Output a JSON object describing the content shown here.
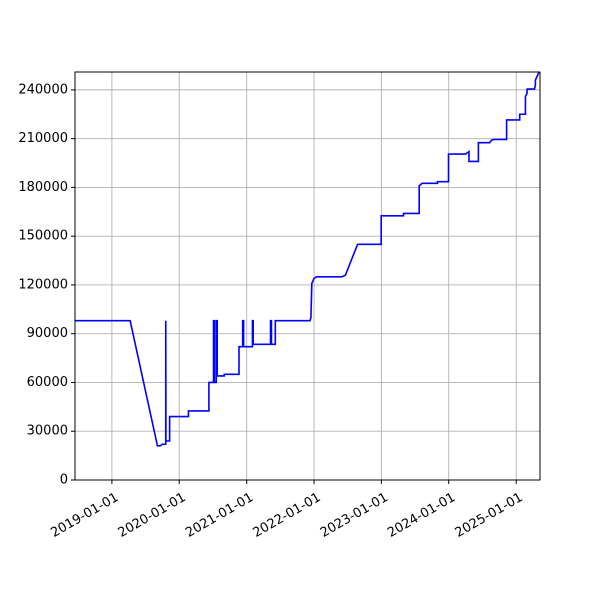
{
  "chart_data": {
    "type": "line",
    "title": "",
    "xlabel": "",
    "ylabel": "",
    "x_type": "date",
    "xlim": [
      "2018-06-15",
      "2025-05-10"
    ],
    "ylim": [
      0,
      251000
    ],
    "grid": true,
    "legend": "none",
    "x_ticks": [
      "2019-01-01",
      "2020-01-01",
      "2021-01-01",
      "2022-01-01",
      "2023-01-01",
      "2024-01-01",
      "2025-01-01"
    ],
    "y_ticks": [
      0,
      30000,
      60000,
      90000,
      120000,
      150000,
      180000,
      210000,
      240000
    ],
    "colors": {
      "line": "#0000ff",
      "grid": "#b0b0b0",
      "axis": "#000000"
    },
    "series": [
      {
        "name": "",
        "points": [
          [
            "2018-06-15",
            98000
          ],
          [
            "2019-04-10",
            98000
          ],
          [
            "2019-09-05",
            21000
          ],
          [
            "2019-09-20",
            21000
          ],
          [
            "2019-10-01",
            22000
          ],
          [
            "2019-10-20",
            22000
          ],
          [
            "2019-10-20",
            98000
          ],
          [
            "2019-10-21",
            24000
          ],
          [
            "2019-11-10",
            24000
          ],
          [
            "2019-11-10",
            39000
          ],
          [
            "2020-02-20",
            39000
          ],
          [
            "2020-02-20",
            42500
          ],
          [
            "2020-06-10",
            42500
          ],
          [
            "2020-06-10",
            60000
          ],
          [
            "2020-07-05",
            60000
          ],
          [
            "2020-07-05",
            98000
          ],
          [
            "2020-07-10",
            98000
          ],
          [
            "2020-07-10",
            60000
          ],
          [
            "2020-07-20",
            60000
          ],
          [
            "2020-07-20",
            98000
          ],
          [
            "2020-07-25",
            98000
          ],
          [
            "2020-07-25",
            64000
          ],
          [
            "2020-09-01",
            64000
          ],
          [
            "2020-09-01",
            65000
          ],
          [
            "2020-11-20",
            65000
          ],
          [
            "2020-11-20",
            82000
          ],
          [
            "2020-12-10",
            82000
          ],
          [
            "2020-12-10",
            98000
          ],
          [
            "2020-12-15",
            98000
          ],
          [
            "2020-12-15",
            82000
          ],
          [
            "2021-02-01",
            82000
          ],
          [
            "2021-02-01",
            98000
          ],
          [
            "2021-02-05",
            98000
          ],
          [
            "2021-02-05",
            83500
          ],
          [
            "2021-05-10",
            83500
          ],
          [
            "2021-05-10",
            98000
          ],
          [
            "2021-05-15",
            98000
          ],
          [
            "2021-05-15",
            83500
          ],
          [
            "2021-06-05",
            83500
          ],
          [
            "2021-06-05",
            98000
          ],
          [
            "2021-12-10",
            98000
          ],
          [
            "2021-12-15",
            100000
          ],
          [
            "2021-12-20",
            121000
          ],
          [
            "2022-01-01",
            124000
          ],
          [
            "2022-01-15",
            125000
          ],
          [
            "2022-06-01",
            125000
          ],
          [
            "2022-06-20",
            126000
          ],
          [
            "2022-08-25",
            145000
          ],
          [
            "2022-12-31",
            145000
          ],
          [
            "2022-12-31",
            162500
          ],
          [
            "2023-05-01",
            162500
          ],
          [
            "2023-05-01",
            164000
          ],
          [
            "2023-07-25",
            164000
          ],
          [
            "2023-07-25",
            181000
          ],
          [
            "2023-08-10",
            182500
          ],
          [
            "2023-11-01",
            182500
          ],
          [
            "2023-11-01",
            183500
          ],
          [
            "2023-12-31",
            183500
          ],
          [
            "2023-12-31",
            200500
          ],
          [
            "2024-04-01",
            200500
          ],
          [
            "2024-04-20",
            202000
          ],
          [
            "2024-04-20",
            196000
          ],
          [
            "2024-06-10",
            196000
          ],
          [
            "2024-06-10",
            207500
          ],
          [
            "2024-08-10",
            207500
          ],
          [
            "2024-08-20",
            209000
          ],
          [
            "2024-08-30",
            209500
          ],
          [
            "2024-11-10",
            209500
          ],
          [
            "2024-11-10",
            221500
          ],
          [
            "2025-01-20",
            221500
          ],
          [
            "2025-01-20",
            225000
          ],
          [
            "2025-02-20",
            225000
          ],
          [
            "2025-02-20",
            236000
          ],
          [
            "2025-03-01",
            238000
          ],
          [
            "2025-03-01",
            240500
          ],
          [
            "2025-04-10",
            240500
          ],
          [
            "2025-04-15",
            243000
          ],
          [
            "2025-04-15",
            246000
          ],
          [
            "2025-05-05",
            251000
          ]
        ]
      }
    ]
  }
}
